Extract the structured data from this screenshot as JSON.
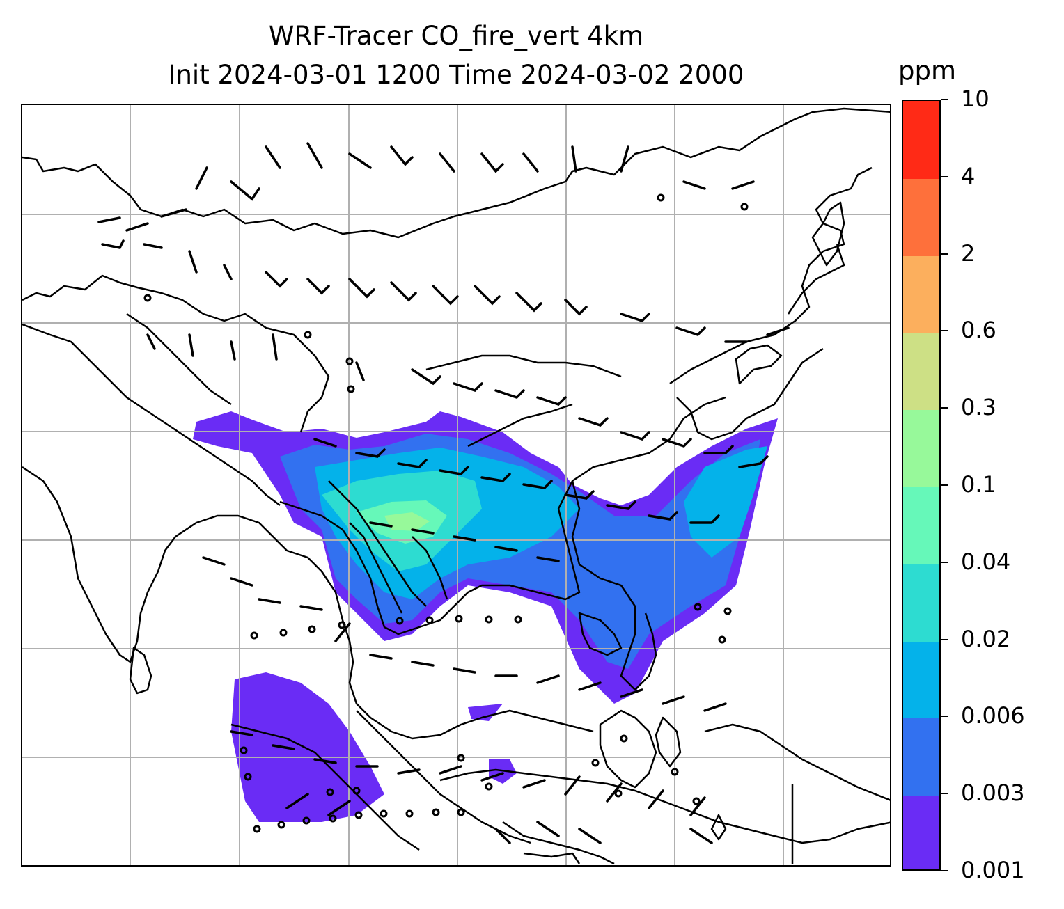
{
  "title": {
    "line1": "WRF-Tracer CO_fire_vert 4km",
    "line2": "Init 2024-03-01 1200 Time 2024-03-02 2000"
  },
  "colorbar": {
    "unit": "ppm",
    "levels": [
      "0.001",
      "0.003",
      "0.006",
      "0.02",
      "0.04",
      "0.1",
      "0.3",
      "0.6",
      "2",
      "4",
      "10"
    ],
    "colors": [
      "#6a2cf5",
      "#3271f0",
      "#04b2ea",
      "#2ddcd1",
      "#66f8b9",
      "#97f99a",
      "#cde085",
      "#fcaf5d",
      "#fe703b",
      "#ff2a16"
    ]
  },
  "map": {
    "gridlines": true,
    "gridline_color": "#b0b0b0",
    "coastline_color": "#000000",
    "plume_region": "mainland Southeast Asia and southern China extending east over the western Pacific",
    "wind_barbs": true
  }
}
